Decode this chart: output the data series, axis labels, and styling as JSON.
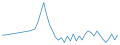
{
  "y_values": [
    30,
    30,
    31,
    32,
    33,
    34,
    35,
    36,
    37,
    38,
    40,
    42,
    55,
    75,
    95,
    70,
    50,
    38,
    25,
    20,
    25,
    15,
    28,
    18,
    32,
    18,
    28,
    20,
    32,
    38,
    35,
    28,
    38,
    30,
    22,
    15,
    22,
    32,
    20,
    30
  ],
  "line_color": "#2e86c1",
  "line_width": 0.5,
  "background_color": "#ffffff"
}
